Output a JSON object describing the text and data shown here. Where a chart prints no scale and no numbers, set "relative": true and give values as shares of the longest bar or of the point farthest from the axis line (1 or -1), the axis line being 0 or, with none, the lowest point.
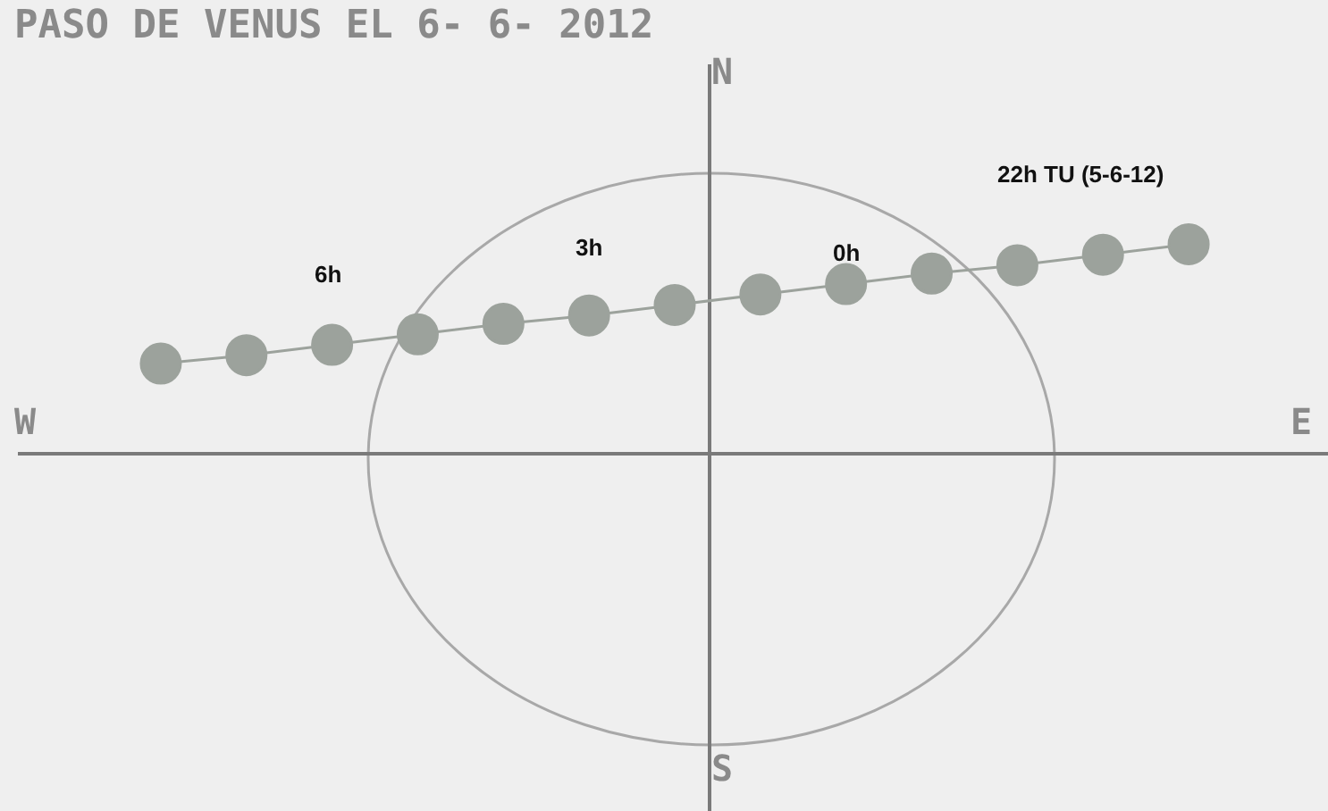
{
  "chart_data": {
    "type": "line",
    "title": "PASO DE VENUS EL 6- 6- 2012",
    "annotations": [
      "N",
      "S",
      "W",
      "E",
      "6h",
      "3h",
      "0h",
      "22h TU (5-6-12)"
    ],
    "categories": [
      null,
      null,
      null,
      null,
      null,
      null,
      null,
      null,
      null,
      null,
      null,
      null,
      null
    ],
    "relative": true,
    "series": [
      {
        "color": "#9ca29c",
        "values": [
          0.43,
          0.47,
          0.52,
          0.57,
          0.62,
          0.66,
          0.71,
          0.76,
          0.81,
          0.86,
          0.9,
          0.95,
          1.0
        ]
      }
    ],
    "marker": "circle",
    "line_style": "solid",
    "grid": false,
    "legend": false
  }
}
